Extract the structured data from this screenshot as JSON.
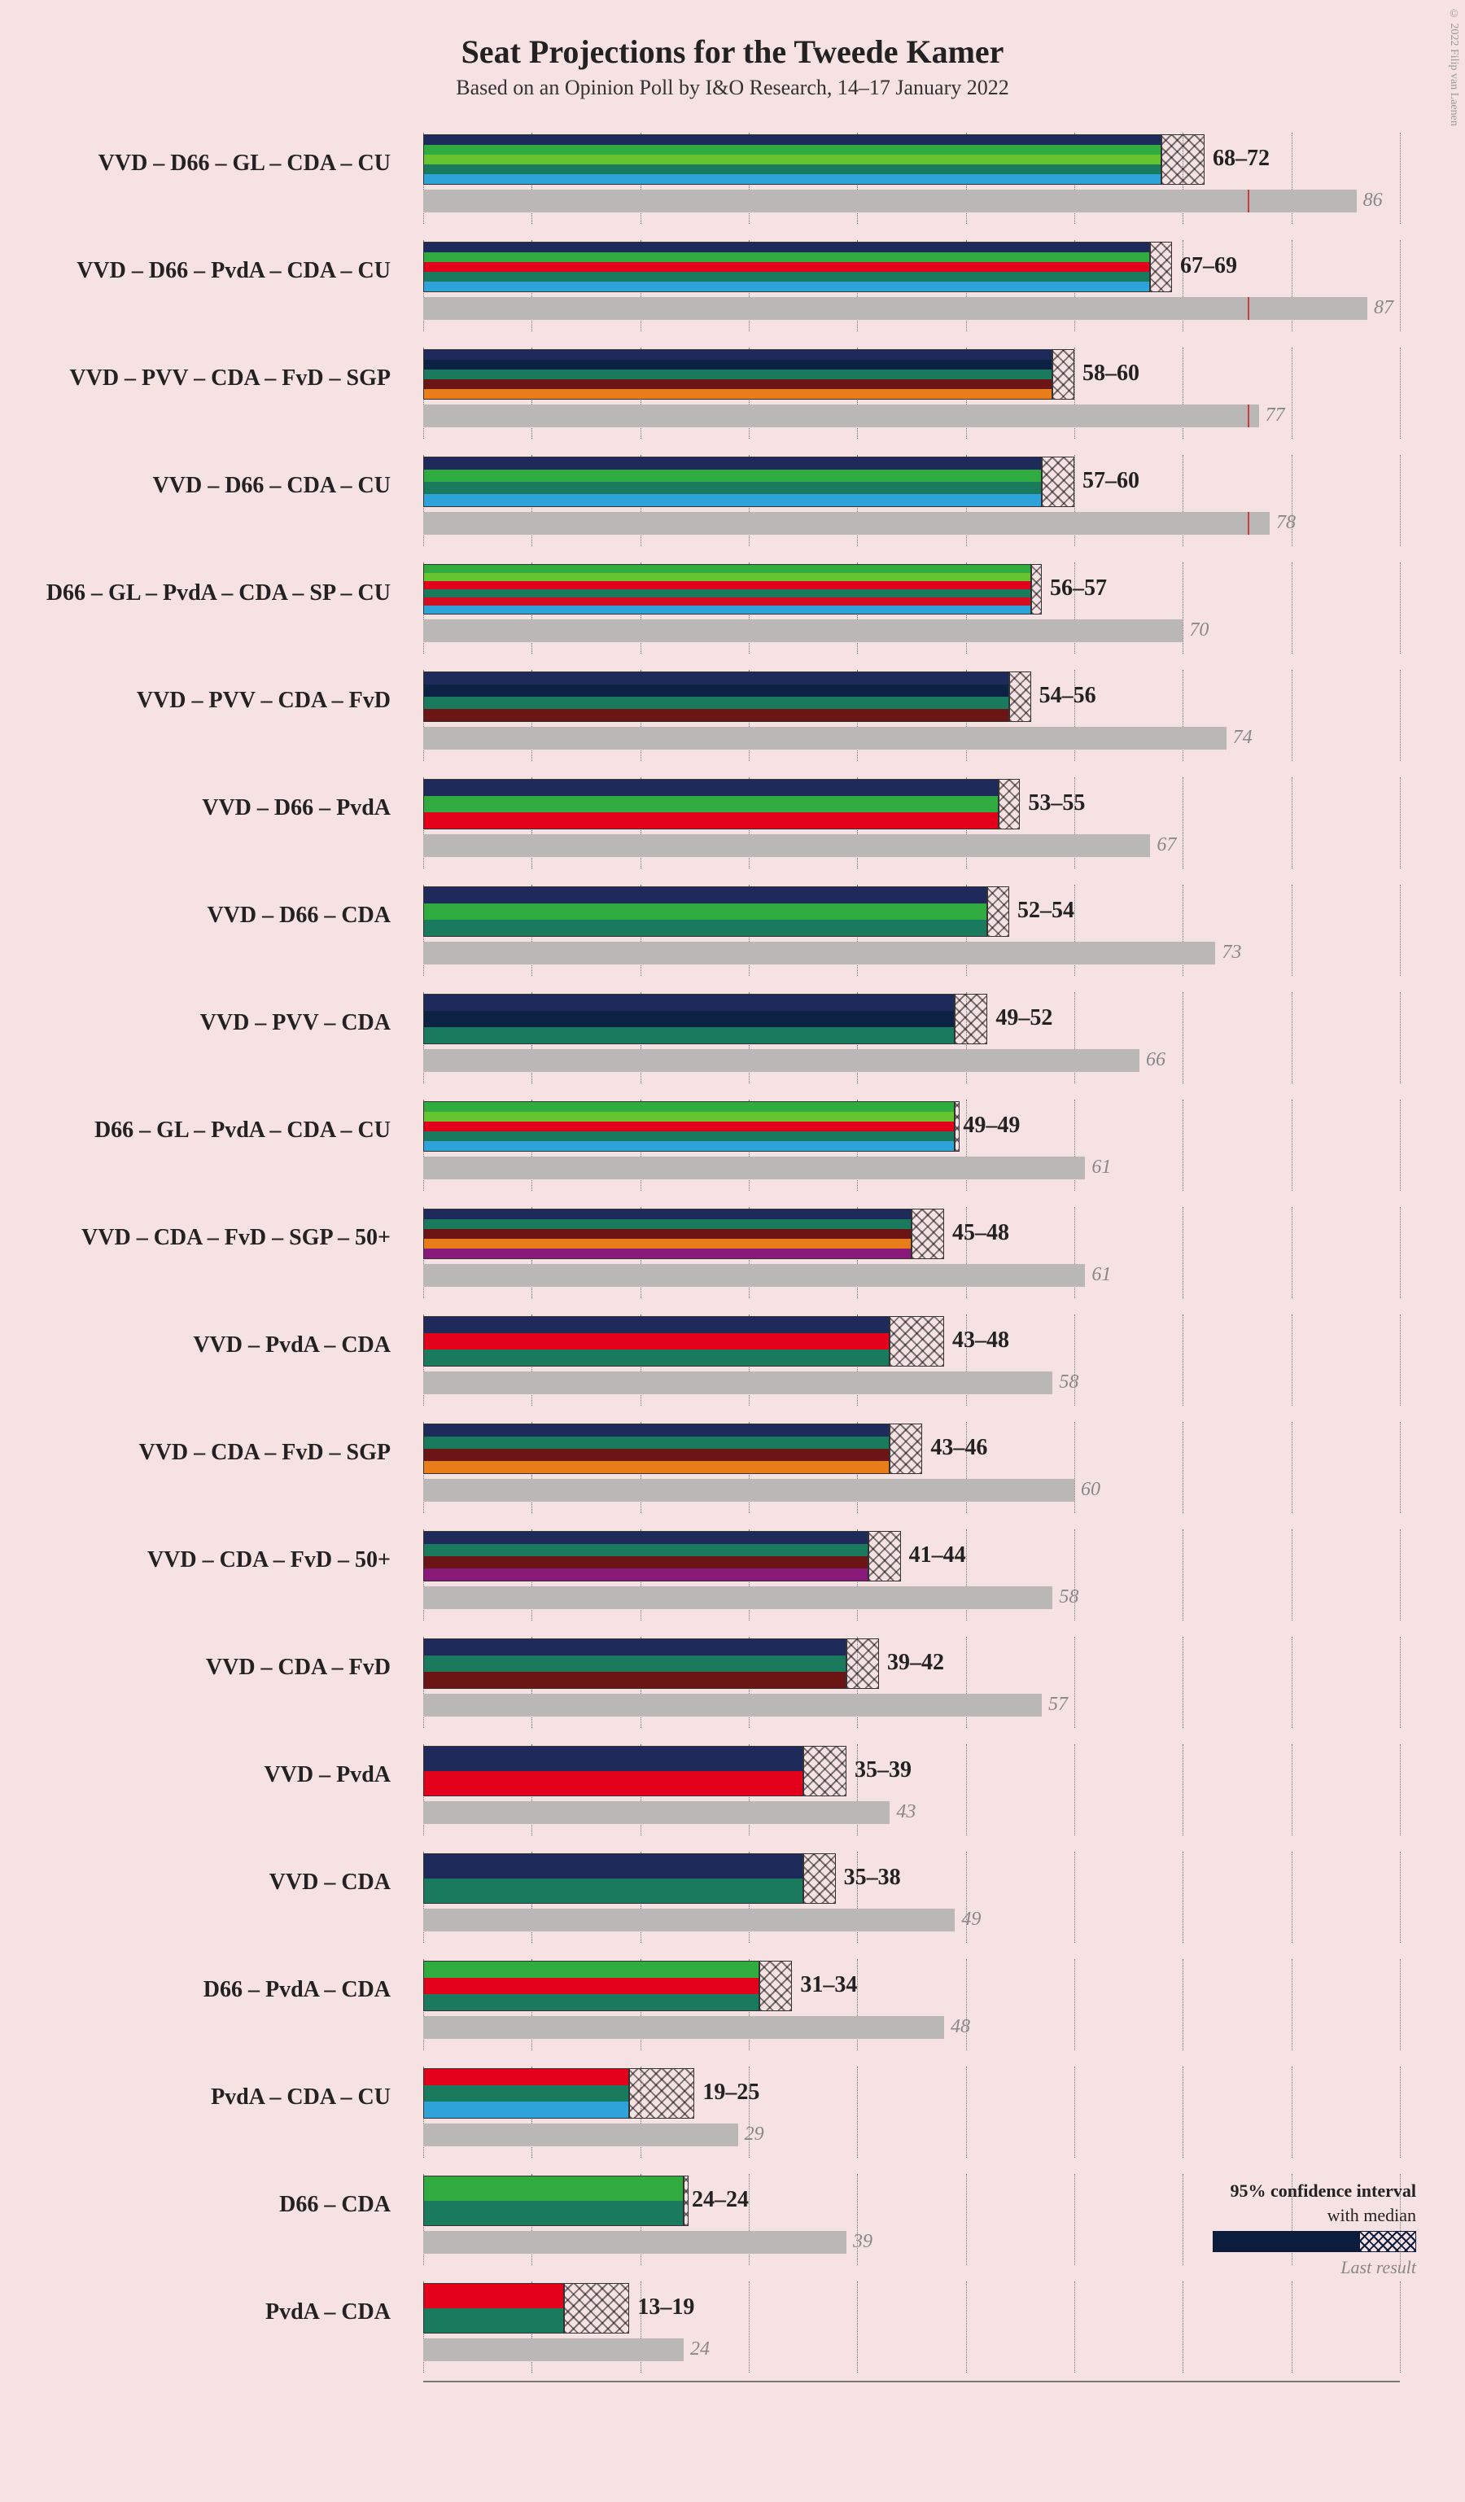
{
  "title": "Seat Projections for the Tweede Kamer",
  "subtitle": "Based on an Opinion Poll by I&O Research, 14–17 January 2022",
  "copyright": "© 2022 Filip van Laenen",
  "legend": {
    "line1": "95% confidence interval",
    "line2": "with median",
    "last": "Last result"
  },
  "xmax": 90,
  "grid_step": 10,
  "majority": 76,
  "party_colors": {
    "VVD": "#1e2a5a",
    "D66": "#2fab3f",
    "GL": "#66c431",
    "CDA": "#1a7a5e",
    "CU": "#2ea3d9",
    "PvdA": "#e2001a",
    "PVV": "#0b2245",
    "FvD": "#6b1515",
    "SGP": "#e87d1a",
    "SP": "#d40e20",
    "50+": "#8a1a7a"
  },
  "rows": [
    {
      "label": "VVD – D66 – GL – CDA – CU",
      "parties": [
        "VVD",
        "D66",
        "GL",
        "CDA",
        "CU"
      ],
      "lo": 68,
      "hi": 72,
      "median": 70,
      "last": 86,
      "show_majority": true
    },
    {
      "label": "VVD – D66 – PvdA – CDA – CU",
      "parties": [
        "VVD",
        "D66",
        "PvdA",
        "CDA",
        "CU"
      ],
      "lo": 67,
      "hi": 69,
      "median": 68,
      "last": 87,
      "show_majority": true
    },
    {
      "label": "VVD – PVV – CDA – FvD – SGP",
      "parties": [
        "VVD",
        "PVV",
        "CDA",
        "FvD",
        "SGP"
      ],
      "lo": 58,
      "hi": 60,
      "median": 59,
      "last": 77,
      "show_majority": true
    },
    {
      "label": "VVD – D66 – CDA – CU",
      "parties": [
        "VVD",
        "D66",
        "CDA",
        "CU"
      ],
      "lo": 57,
      "hi": 60,
      "median": 58,
      "last": 78,
      "show_majority": true
    },
    {
      "label": "D66 – GL – PvdA – CDA – SP – CU",
      "parties": [
        "D66",
        "GL",
        "PvdA",
        "CDA",
        "SP",
        "CU"
      ],
      "lo": 56,
      "hi": 57,
      "median": 56,
      "last": 70,
      "show_majority": false
    },
    {
      "label": "VVD – PVV – CDA – FvD",
      "parties": [
        "VVD",
        "PVV",
        "CDA",
        "FvD"
      ],
      "lo": 54,
      "hi": 56,
      "median": 55,
      "last": 74,
      "show_majority": false
    },
    {
      "label": "VVD – D66 – PvdA",
      "parties": [
        "VVD",
        "D66",
        "PvdA"
      ],
      "lo": 53,
      "hi": 55,
      "median": 54,
      "last": 67,
      "show_majority": false
    },
    {
      "label": "VVD – D66 – CDA",
      "parties": [
        "VVD",
        "D66",
        "CDA"
      ],
      "lo": 52,
      "hi": 54,
      "median": 53,
      "last": 73,
      "show_majority": false
    },
    {
      "label": "VVD – PVV – CDA",
      "parties": [
        "VVD",
        "PVV",
        "CDA"
      ],
      "lo": 49,
      "hi": 52,
      "median": 50,
      "last": 66,
      "show_majority": false
    },
    {
      "label": "D66 – GL – PvdA – CDA – CU",
      "parties": [
        "D66",
        "GL",
        "PvdA",
        "CDA",
        "CU"
      ],
      "lo": 49,
      "hi": 49,
      "median": 49,
      "last": 61,
      "show_majority": false
    },
    {
      "label": "VVD – CDA – FvD – SGP – 50+",
      "parties": [
        "VVD",
        "CDA",
        "FvD",
        "SGP",
        "50+"
      ],
      "lo": 45,
      "hi": 48,
      "median": 46,
      "last": 61,
      "show_majority": false
    },
    {
      "label": "VVD – PvdA – CDA",
      "parties": [
        "VVD",
        "PvdA",
        "CDA"
      ],
      "lo": 43,
      "hi": 48,
      "median": 45,
      "last": 58,
      "show_majority": false
    },
    {
      "label": "VVD – CDA – FvD – SGP",
      "parties": [
        "VVD",
        "CDA",
        "FvD",
        "SGP"
      ],
      "lo": 43,
      "hi": 46,
      "median": 44,
      "last": 60,
      "show_majority": false
    },
    {
      "label": "VVD – CDA – FvD – 50+",
      "parties": [
        "VVD",
        "CDA",
        "FvD",
        "50+"
      ],
      "lo": 41,
      "hi": 44,
      "median": 42,
      "last": 58,
      "show_majority": false
    },
    {
      "label": "VVD – CDA – FvD",
      "parties": [
        "VVD",
        "CDA",
        "FvD"
      ],
      "lo": 39,
      "hi": 42,
      "median": 40,
      "last": 57,
      "show_majority": false
    },
    {
      "label": "VVD – PvdA",
      "parties": [
        "VVD",
        "PvdA"
      ],
      "lo": 35,
      "hi": 39,
      "median": 37,
      "last": 43,
      "show_majority": false
    },
    {
      "label": "VVD – CDA",
      "parties": [
        "VVD",
        "CDA"
      ],
      "lo": 35,
      "hi": 38,
      "median": 36,
      "last": 49,
      "show_majority": false
    },
    {
      "label": "D66 – PvdA – CDA",
      "parties": [
        "D66",
        "PvdA",
        "CDA"
      ],
      "lo": 31,
      "hi": 34,
      "median": 32,
      "last": 48,
      "show_majority": false
    },
    {
      "label": "PvdA – CDA – CU",
      "parties": [
        "PvdA",
        "CDA",
        "CU"
      ],
      "lo": 19,
      "hi": 25,
      "median": 22,
      "last": 29,
      "show_majority": false
    },
    {
      "label": "D66 – CDA",
      "parties": [
        "D66",
        "CDA"
      ],
      "lo": 24,
      "hi": 24,
      "median": 24,
      "last": 39,
      "show_majority": false
    },
    {
      "label": "PvdA – CDA",
      "parties": [
        "PvdA",
        "CDA"
      ],
      "lo": 13,
      "hi": 19,
      "median": 16,
      "last": 24,
      "show_majority": false
    }
  ]
}
